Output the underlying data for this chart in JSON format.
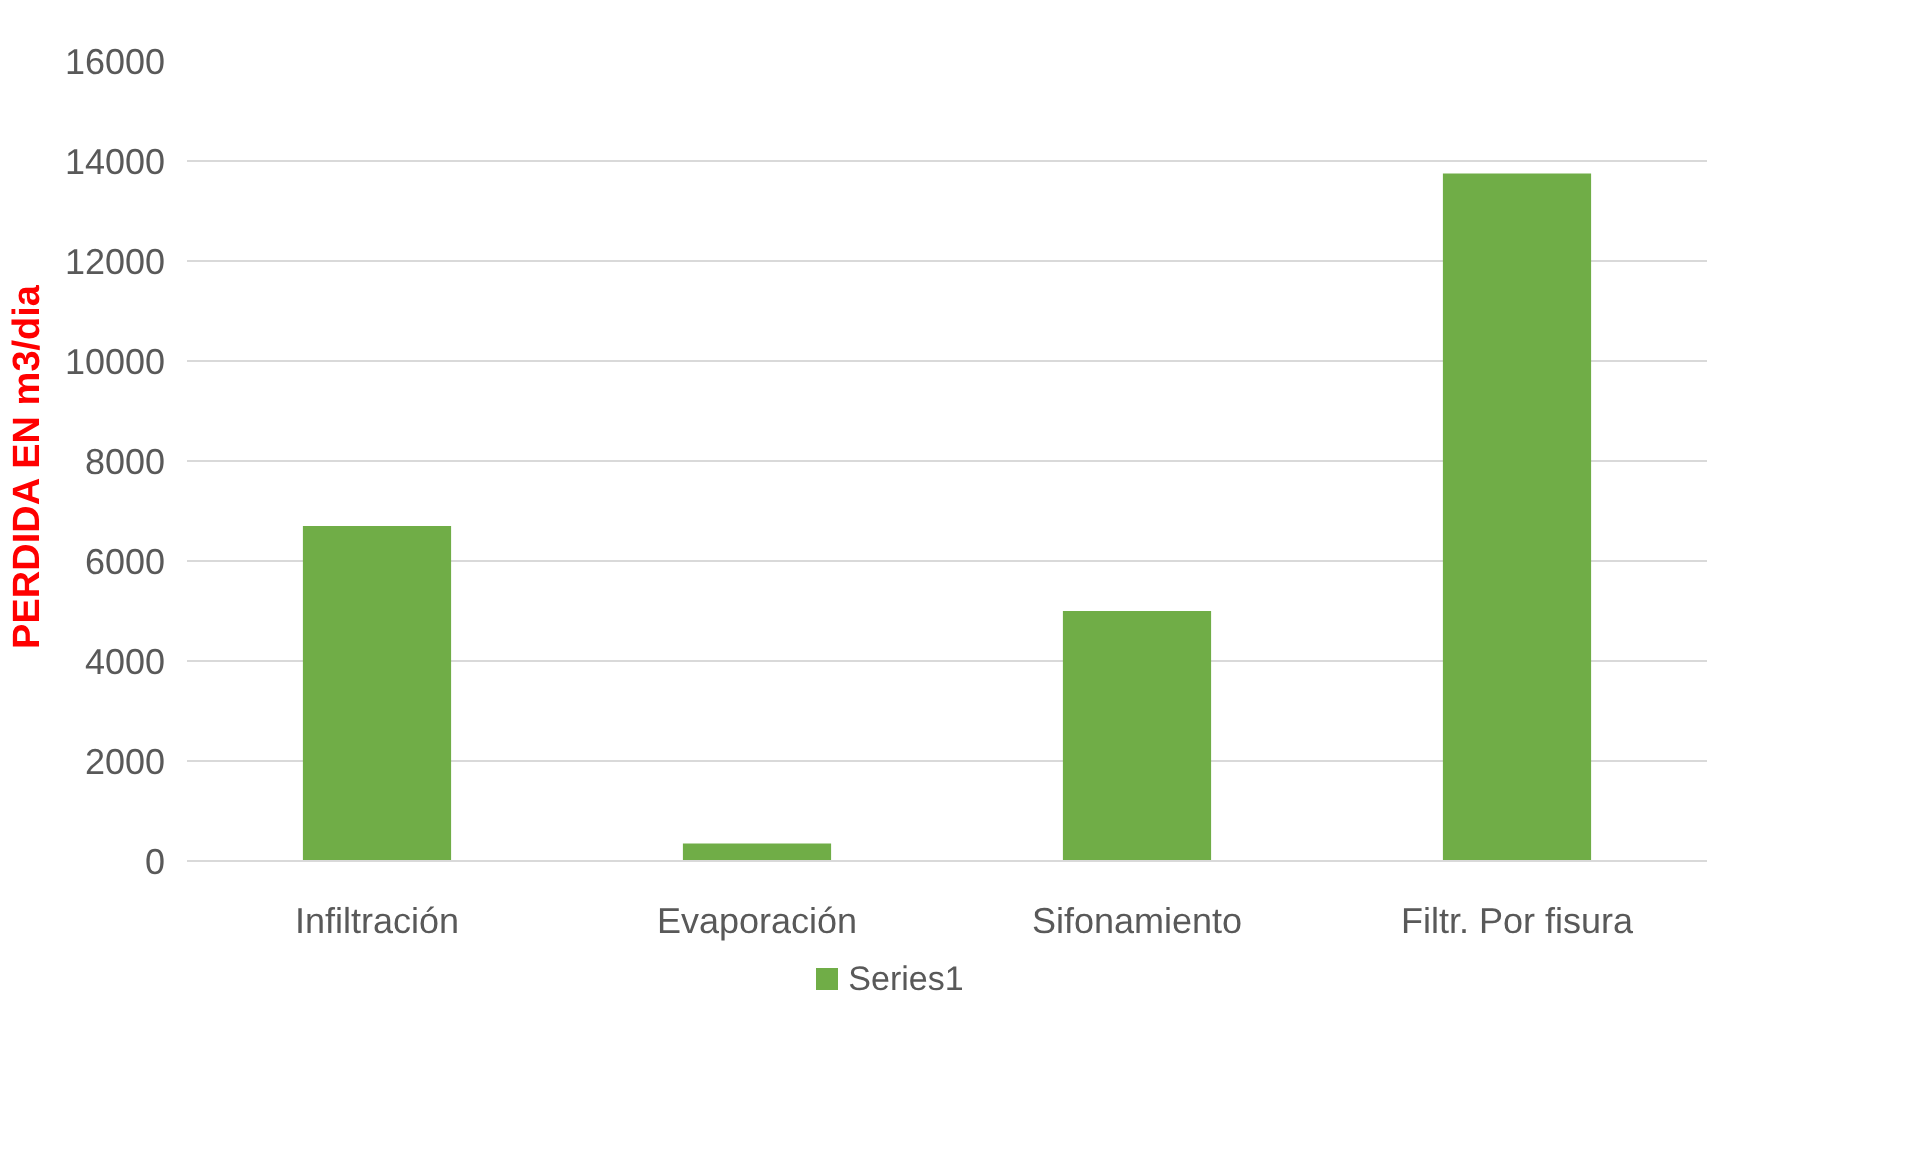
{
  "chart_data": {
    "type": "bar",
    "ylabel": "PERDIDA  EN m3/dia",
    "categories": [
      "Infiltración",
      "Evaporación",
      "Sifonamiento",
      "Filtr. Por fisura"
    ],
    "series": [
      {
        "name": "Series1",
        "color": "#70ad47",
        "values": [
          6700,
          350,
          5000,
          13750
        ]
      }
    ],
    "ylim": [
      0,
      16000
    ],
    "yticks": [
      0,
      2000,
      4000,
      6000,
      8000,
      10000,
      12000,
      14000,
      16000
    ],
    "grid": "y",
    "legend": "bottom"
  }
}
